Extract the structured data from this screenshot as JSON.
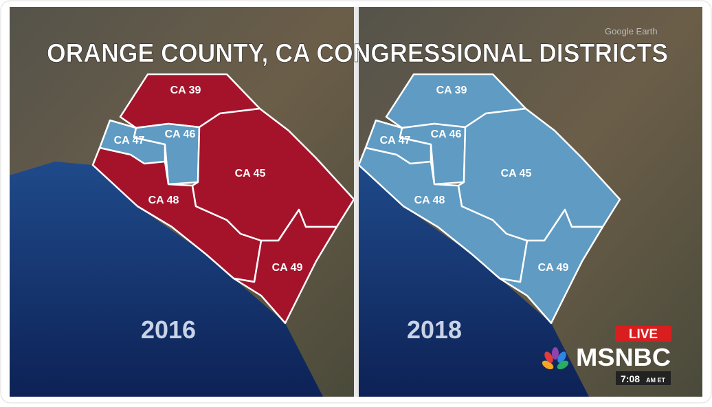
{
  "title": "ORANGE COUNTY, CA CONGRESSIONAL DISTRICTS",
  "watermark": "Google Earth",
  "panels": [
    {
      "year": "2016",
      "districts": [
        {
          "label": "CA 39",
          "color": "#a5132b"
        },
        {
          "label": "CA 47",
          "color": "#5f9bc3"
        },
        {
          "label": "CA 46",
          "color": "#5f9bc3"
        },
        {
          "label": "CA 48",
          "color": "#a5132b"
        },
        {
          "label": "CA 45",
          "color": "#a5132b"
        },
        {
          "label": "CA 49",
          "color": "#a5132b"
        }
      ]
    },
    {
      "year": "2018",
      "districts": [
        {
          "label": "CA 39",
          "color": "#5f9bc3"
        },
        {
          "label": "CA 47",
          "color": "#5f9bc3"
        },
        {
          "label": "CA 46",
          "color": "#5f9bc3"
        },
        {
          "label": "CA 48",
          "color": "#5f9bc3"
        },
        {
          "label": "CA 45",
          "color": "#5f9bc3"
        },
        {
          "label": "CA 49",
          "color": "#5f9bc3"
        }
      ]
    }
  ],
  "live": "LIVE",
  "network": "MSNBC",
  "time": {
    "clock": "7:08",
    "suffix": "AM ET"
  }
}
